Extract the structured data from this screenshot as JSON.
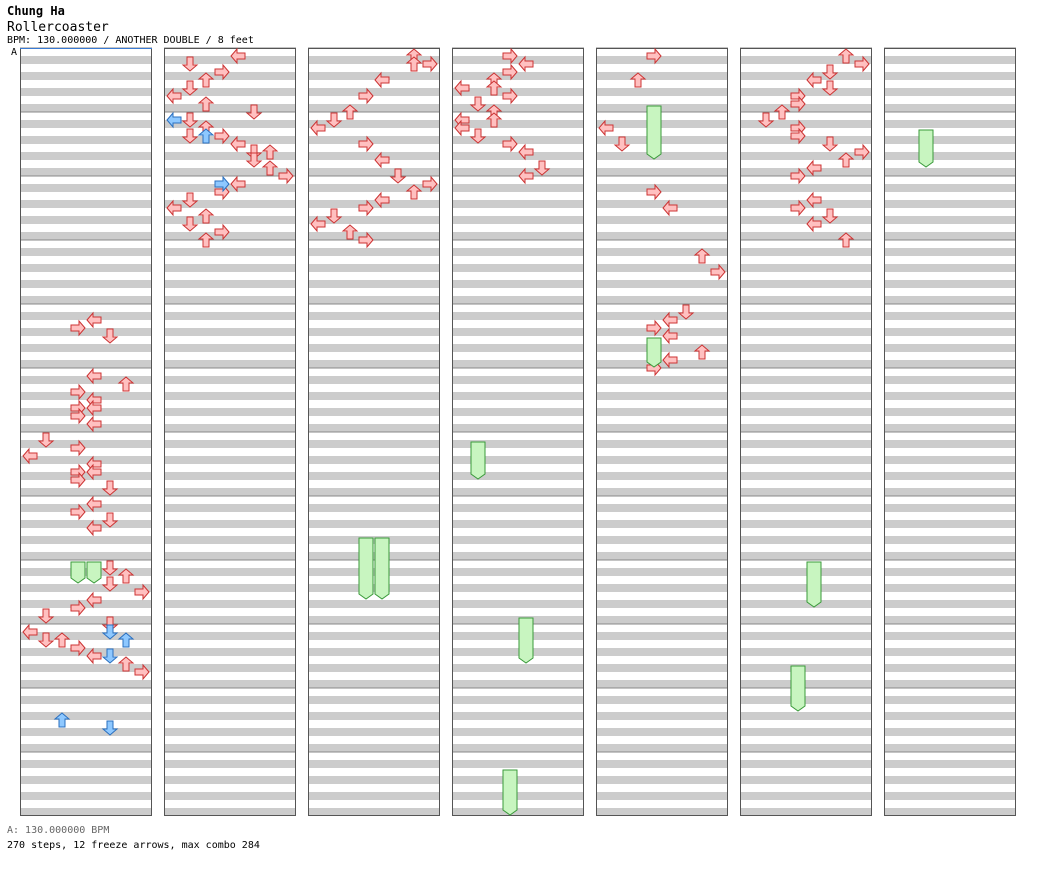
{
  "header": {
    "artist": "Chung Ha",
    "title": "Rollercoaster",
    "info": "BPM: 130.000000 / ANOTHER DOUBLE / 8 feet"
  },
  "marker": "A",
  "footer": {
    "bpm_line": "A: 130.000000 BPM",
    "stats": "270 steps, 12 freeze arrows, max combo 284"
  },
  "colors": {
    "note_red": "#ffc0c0",
    "note_red_stroke": "#cc3333",
    "note_blue": "#8ec8ff",
    "note_blue_stroke": "#2a6fbf",
    "freeze": "#c8f5c0",
    "freeze_stroke": "#3a9a3a",
    "stripe": "#cccccc",
    "border": "#555555"
  },
  "chart_data": {
    "type": "table",
    "lanes": [
      "left-p1",
      "down-p1",
      "up-p1",
      "right-p1",
      "left-p2",
      "down-p2",
      "up-p2",
      "right-p2"
    ],
    "rows_per_measure": 8,
    "measures_per_column": 12,
    "notes": [
      {
        "m": 4,
        "lane": 4,
        "row": 1
      },
      {
        "m": 4,
        "lane": 3,
        "row": 2
      },
      {
        "m": 4,
        "lane": 5,
        "row": 3
      },
      {
        "m": 5,
        "lane": 4,
        "row": 0
      },
      {
        "m": 5,
        "lane": 6,
        "row": 1
      },
      {
        "m": 5,
        "lane": 3,
        "row": 2
      },
      {
        "m": 5,
        "lane": 4,
        "row": 3
      },
      {
        "m": 5,
        "lane": 3,
        "row": 4
      },
      {
        "m": 5,
        "lane": 4,
        "row": 4
      },
      {
        "m": 5,
        "lane": 3,
        "row": 5
      },
      {
        "m": 5,
        "lane": 4,
        "row": 6
      },
      {
        "m": 6,
        "lane": 1,
        "row": 0
      },
      {
        "m": 6,
        "lane": 3,
        "row": 1
      },
      {
        "m": 6,
        "lane": 0,
        "row": 2
      },
      {
        "m": 6,
        "lane": 4,
        "row": 3
      },
      {
        "m": 6,
        "lane": 3,
        "row": 4
      },
      {
        "m": 6,
        "lane": 4,
        "row": 4
      },
      {
        "m": 6,
        "lane": 3,
        "row": 5
      },
      {
        "m": 6,
        "lane": 5,
        "row": 6
      },
      {
        "m": 7,
        "lane": 4,
        "row": 0
      },
      {
        "m": 7,
        "lane": 3,
        "row": 1
      },
      {
        "m": 7,
        "lane": 5,
        "row": 2
      },
      {
        "m": 7,
        "lane": 4,
        "row": 3
      },
      {
        "m": 8,
        "lane": 5,
        "row": 0
      },
      {
        "m": 8,
        "lane": 6,
        "row": 1
      },
      {
        "m": 8,
        "lane": 5,
        "row": 2
      },
      {
        "m": 8,
        "lane": 7,
        "row": 3
      },
      {
        "m": 8,
        "lane": 4,
        "row": 4
      },
      {
        "m": 8,
        "lane": 3,
        "row": 5
      },
      {
        "m": 8,
        "lane": 1,
        "row": 6
      },
      {
        "m": 8,
        "lane": 5,
        "row": 7
      },
      {
        "m": 9,
        "lane": 0,
        "row": 0
      },
      {
        "m": 9,
        "lane": 1,
        "row": 1
      },
      {
        "m": 9,
        "lane": 2,
        "row": 1
      },
      {
        "m": 9,
        "lane": 3,
        "row": 2
      },
      {
        "m": 9,
        "lane": 4,
        "row": 3
      },
      {
        "m": 9,
        "lane": 6,
        "row": 4
      },
      {
        "m": 9,
        "lane": 7,
        "row": 5
      },
      {
        "m": 12,
        "lane": 4,
        "row": 0
      },
      {
        "m": 12,
        "lane": 1,
        "row": 1
      },
      {
        "m": 12,
        "lane": 3,
        "row": 2
      },
      {
        "m": 12,
        "lane": 2,
        "row": 3
      },
      {
        "m": 12,
        "lane": 1,
        "row": 4
      },
      {
        "m": 12,
        "lane": 0,
        "row": 5
      },
      {
        "m": 12,
        "lane": 2,
        "row": 6
      },
      {
        "m": 12,
        "lane": 5,
        "row": 7
      },
      {
        "m": 13,
        "lane": 1,
        "row": 0
      },
      {
        "m": 13,
        "lane": 2,
        "row": 1
      },
      {
        "m": 13,
        "lane": 1,
        "row": 2
      },
      {
        "m": 13,
        "lane": 3,
        "row": 2
      },
      {
        "m": 13,
        "lane": 4,
        "row": 3
      },
      {
        "m": 13,
        "lane": 5,
        "row": 4
      },
      {
        "m": 13,
        "lane": 6,
        "row": 4
      },
      {
        "m": 13,
        "lane": 5,
        "row": 5
      },
      {
        "m": 13,
        "lane": 6,
        "row": 6
      },
      {
        "m": 13,
        "lane": 7,
        "row": 7
      },
      {
        "m": 14,
        "lane": 4,
        "row": 0
      },
      {
        "m": 14,
        "lane": 3,
        "row": 1
      },
      {
        "m": 14,
        "lane": 1,
        "row": 2
      },
      {
        "m": 14,
        "lane": 0,
        "row": 3
      },
      {
        "m": 14,
        "lane": 2,
        "row": 4
      },
      {
        "m": 14,
        "lane": 1,
        "row": 5
      },
      {
        "m": 14,
        "lane": 3,
        "row": 6
      },
      {
        "m": 14,
        "lane": 2,
        "row": 7
      },
      {
        "m": 24,
        "lane": 6,
        "row": 0
      },
      {
        "m": 24,
        "lane": 6,
        "row": 1
      },
      {
        "m": 24,
        "lane": 7,
        "row": 1
      },
      {
        "m": 24,
        "lane": 4,
        "row": 3
      },
      {
        "m": 24,
        "lane": 3,
        "row": 5
      },
      {
        "m": 24,
        "lane": 2,
        "row": 7
      },
      {
        "m": 25,
        "lane": 1,
        "row": 0
      },
      {
        "m": 25,
        "lane": 0,
        "row": 1
      },
      {
        "m": 25,
        "lane": 3,
        "row": 3
      },
      {
        "m": 25,
        "lane": 4,
        "row": 5
      },
      {
        "m": 25,
        "lane": 5,
        "row": 7
      },
      {
        "m": 26,
        "lane": 7,
        "row": 0
      },
      {
        "m": 26,
        "lane": 6,
        "row": 1
      },
      {
        "m": 26,
        "lane": 4,
        "row": 2
      },
      {
        "m": 26,
        "lane": 3,
        "row": 3
      },
      {
        "m": 26,
        "lane": 1,
        "row": 4
      },
      {
        "m": 26,
        "lane": 0,
        "row": 5
      },
      {
        "m": 26,
        "lane": 2,
        "row": 6
      },
      {
        "m": 26,
        "lane": 3,
        "row": 7
      },
      {
        "m": 36,
        "lane": 3,
        "row": 0
      },
      {
        "m": 36,
        "lane": 4,
        "row": 1
      },
      {
        "m": 36,
        "lane": 3,
        "row": 2
      },
      {
        "m": 36,
        "lane": 2,
        "row": 3
      },
      {
        "m": 36,
        "lane": 0,
        "row": 4
      },
      {
        "m": 36,
        "lane": 2,
        "row": 4
      },
      {
        "m": 36,
        "lane": 3,
        "row": 5
      },
      {
        "m": 36,
        "lane": 1,
        "row": 6
      },
      {
        "m": 36,
        "lane": 2,
        "row": 7
      },
      {
        "m": 37,
        "lane": 0,
        "row": 0
      },
      {
        "m": 37,
        "lane": 2,
        "row": 0
      },
      {
        "m": 37,
        "lane": 0,
        "row": 1
      },
      {
        "m": 37,
        "lane": 1,
        "row": 2
      },
      {
        "m": 37,
        "lane": 3,
        "row": 3
      },
      {
        "m": 37,
        "lane": 4,
        "row": 4
      },
      {
        "m": 37,
        "lane": 5,
        "row": 6
      },
      {
        "m": 37,
        "lane": 4,
        "row": 7
      },
      {
        "m": 48,
        "lane": 3,
        "row": 0
      },
      {
        "m": 48,
        "lane": 2,
        "row": 3
      },
      {
        "m": 49,
        "lane": 0,
        "row": 1
      },
      {
        "m": 49,
        "lane": 1,
        "row": 3
      },
      {
        "m": 50,
        "lane": 3,
        "row": 1
      },
      {
        "m": 50,
        "lane": 4,
        "row": 3
      },
      {
        "m": 51,
        "lane": 6,
        "row": 1
      },
      {
        "m": 51,
        "lane": 7,
        "row": 3
      },
      {
        "m": 52,
        "lane": 5,
        "row": 0
      },
      {
        "m": 52,
        "lane": 4,
        "row": 1
      },
      {
        "m": 52,
        "lane": 3,
        "row": 2
      },
      {
        "m": 52,
        "lane": 4,
        "row": 3
      },
      {
        "m": 52,
        "lane": 6,
        "row": 5
      },
      {
        "m": 52,
        "lane": 4,
        "row": 6
      },
      {
        "m": 52,
        "lane": 3,
        "row": 7
      },
      {
        "m": 60,
        "lane": 6,
        "row": 0
      },
      {
        "m": 60,
        "lane": 7,
        "row": 1
      },
      {
        "m": 60,
        "lane": 5,
        "row": 2
      },
      {
        "m": 60,
        "lane": 4,
        "row": 3
      },
      {
        "m": 60,
        "lane": 5,
        "row": 4
      },
      {
        "m": 60,
        "lane": 3,
        "row": 5
      },
      {
        "m": 60,
        "lane": 3,
        "row": 6
      },
      {
        "m": 60,
        "lane": 2,
        "row": 7
      },
      {
        "m": 61,
        "lane": 1,
        "row": 0
      },
      {
        "m": 61,
        "lane": 3,
        "row": 1
      },
      {
        "m": 61,
        "lane": 3,
        "row": 2
      },
      {
        "m": 61,
        "lane": 5,
        "row": 3
      },
      {
        "m": 61,
        "lane": 7,
        "row": 4
      },
      {
        "m": 61,
        "lane": 6,
        "row": 5
      },
      {
        "m": 61,
        "lane": 4,
        "row": 6
      },
      {
        "m": 61,
        "lane": 3,
        "row": 7
      },
      {
        "m": 62,
        "lane": 4,
        "row": 2
      },
      {
        "m": 62,
        "lane": 3,
        "row": 3
      },
      {
        "m": 62,
        "lane": 5,
        "row": 4
      },
      {
        "m": 62,
        "lane": 4,
        "row": 5
      },
      {
        "m": 62,
        "lane": 6,
        "row": 7
      }
    ],
    "blue_notes": [
      {
        "m": 9,
        "lane": 5,
        "row": 0
      },
      {
        "m": 9,
        "lane": 6,
        "row": 1
      },
      {
        "m": 9,
        "lane": 5,
        "row": 3
      },
      {
        "m": 10,
        "lane": 2,
        "row": 3
      },
      {
        "m": 10,
        "lane": 5,
        "row": 4
      },
      {
        "m": 13,
        "lane": 0,
        "row": 0
      },
      {
        "m": 13,
        "lane": 2,
        "row": 2
      },
      {
        "m": 14,
        "lane": 3,
        "row": 0
      }
    ]
  }
}
